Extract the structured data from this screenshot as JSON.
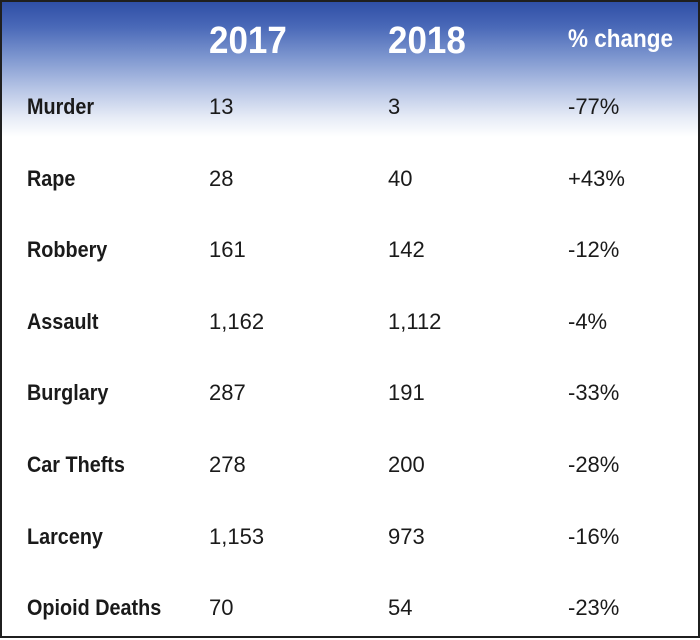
{
  "chart_data": {
    "type": "table",
    "columns": [
      "2017",
      "2018",
      "% change"
    ],
    "rows": [
      {
        "label": "Murder",
        "values": [
          "13",
          "3",
          "-77%"
        ]
      },
      {
        "label": "Rape",
        "values": [
          "28",
          "40",
          "+43%"
        ]
      },
      {
        "label": "Robbery",
        "values": [
          "161",
          "142",
          "-12%"
        ]
      },
      {
        "label": "Assault",
        "values": [
          "1,162",
          "1,112",
          "-4%"
        ]
      },
      {
        "label": "Burglary",
        "values": [
          "287",
          "191",
          "-33%"
        ]
      },
      {
        "label": "Car Thefts",
        "values": [
          "278",
          "200",
          "-28%"
        ]
      },
      {
        "label": "Larceny",
        "values": [
          "1,153",
          "973",
          "-16%"
        ]
      },
      {
        "label": "Opioid Deaths",
        "values": [
          "70",
          "54",
          "-23%"
        ]
      }
    ],
    "header_gradient_color": "#2f4fa6",
    "text_color": "#1a1a1a",
    "border_color": "#1f1f1f"
  }
}
